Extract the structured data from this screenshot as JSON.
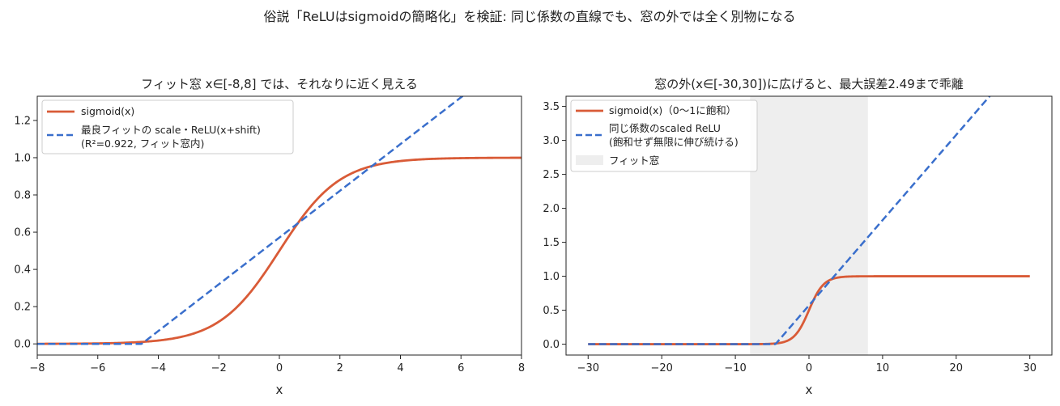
{
  "figure": {
    "suptitle": "俗説「ReLUはsigmoidの簡略化」を検証: 同じ係数の直線でも、窓の外では全く別物になる"
  },
  "colors": {
    "sigmoid": "#d95b37",
    "relu": "#3a6fcc",
    "window": "#d9d9d9"
  },
  "chart_data": [
    {
      "type": "line",
      "title": "フィット窓 x∈[-8,8] では、それなりに近く見える",
      "xlabel": "x",
      "ylabel": "",
      "xlim": [
        -8,
        8
      ],
      "ylim": [
        -0.06,
        1.33
      ],
      "xticks": [
        -8,
        -6,
        -4,
        -2,
        0,
        2,
        4,
        6,
        8
      ],
      "xtick_labels": [
        "−8",
        "−6",
        "−4",
        "−2",
        "0",
        "2",
        "4",
        "6",
        "8"
      ],
      "yticks": [
        0.0,
        0.2,
        0.4,
        0.6,
        0.8,
        1.0,
        1.2
      ],
      "ytick_labels": [
        "0.0",
        "0.2",
        "0.4",
        "0.6",
        "0.8",
        "1.0",
        "1.2"
      ],
      "legend": "upper-left",
      "series": [
        {
          "name": "sigmoid(x)",
          "style": "solid",
          "function": "sigmoid",
          "x": [
            -8,
            -6,
            -4,
            -3,
            -2,
            -1,
            -0.5,
            0,
            0.5,
            1,
            2,
            3,
            4,
            6,
            8
          ],
          "y": [
            0.0003,
            0.0025,
            0.018,
            0.047,
            0.119,
            0.269,
            0.378,
            0.5,
            0.622,
            0.731,
            0.881,
            0.953,
            0.982,
            0.9975,
            0.9997
          ]
        },
        {
          "name": "最良フィットの scale・ReLU(x+shift)",
          "name_line2": "(R²=0.922, フィット窓内)",
          "style": "dashed",
          "function": "relu",
          "scale": 0.1255,
          "shift": 4.55,
          "x": [
            -8,
            -4.55,
            8
          ],
          "y": [
            0,
            0,
            1.575
          ]
        }
      ]
    },
    {
      "type": "line",
      "title": "窓の外(x∈[-30,30])に広げると、最大誤差2.49まで乖離",
      "xlabel": "x",
      "ylabel": "",
      "xlim": [
        -33,
        33
      ],
      "ylim": [
        -0.16,
        3.65
      ],
      "xticks": [
        -30,
        -20,
        -10,
        0,
        10,
        20,
        30
      ],
      "xtick_labels": [
        "−30",
        "−20",
        "−10",
        "0",
        "10",
        "20",
        "30"
      ],
      "yticks": [
        0.0,
        0.5,
        1.0,
        1.5,
        2.0,
        2.5,
        3.0,
        3.5
      ],
      "ytick_labels": [
        "0.0",
        "0.5",
        "1.0",
        "1.5",
        "2.0",
        "2.5",
        "3.0",
        "3.5"
      ],
      "legend": "upper-left",
      "shaded_region": {
        "name": "フィット窓",
        "x": [
          -8,
          8
        ]
      },
      "series": [
        {
          "name": "sigmoid(x)（0〜1に飽和）",
          "style": "solid",
          "function": "sigmoid",
          "x": [
            -30,
            -8,
            -4,
            -2,
            0,
            2,
            4,
            8,
            30
          ],
          "y": [
            0,
            0.0003,
            0.018,
            0.119,
            0.5,
            0.881,
            0.982,
            0.9997,
            1.0
          ]
        },
        {
          "name": "同じ係数のscaled ReLU",
          "name_line2": "(飽和せず無限に伸び続ける)",
          "style": "dashed",
          "function": "relu",
          "scale": 0.1255,
          "shift": 4.55,
          "x": [
            -30,
            -4.55,
            30
          ],
          "y": [
            0,
            0,
            3.49
          ]
        }
      ]
    }
  ]
}
